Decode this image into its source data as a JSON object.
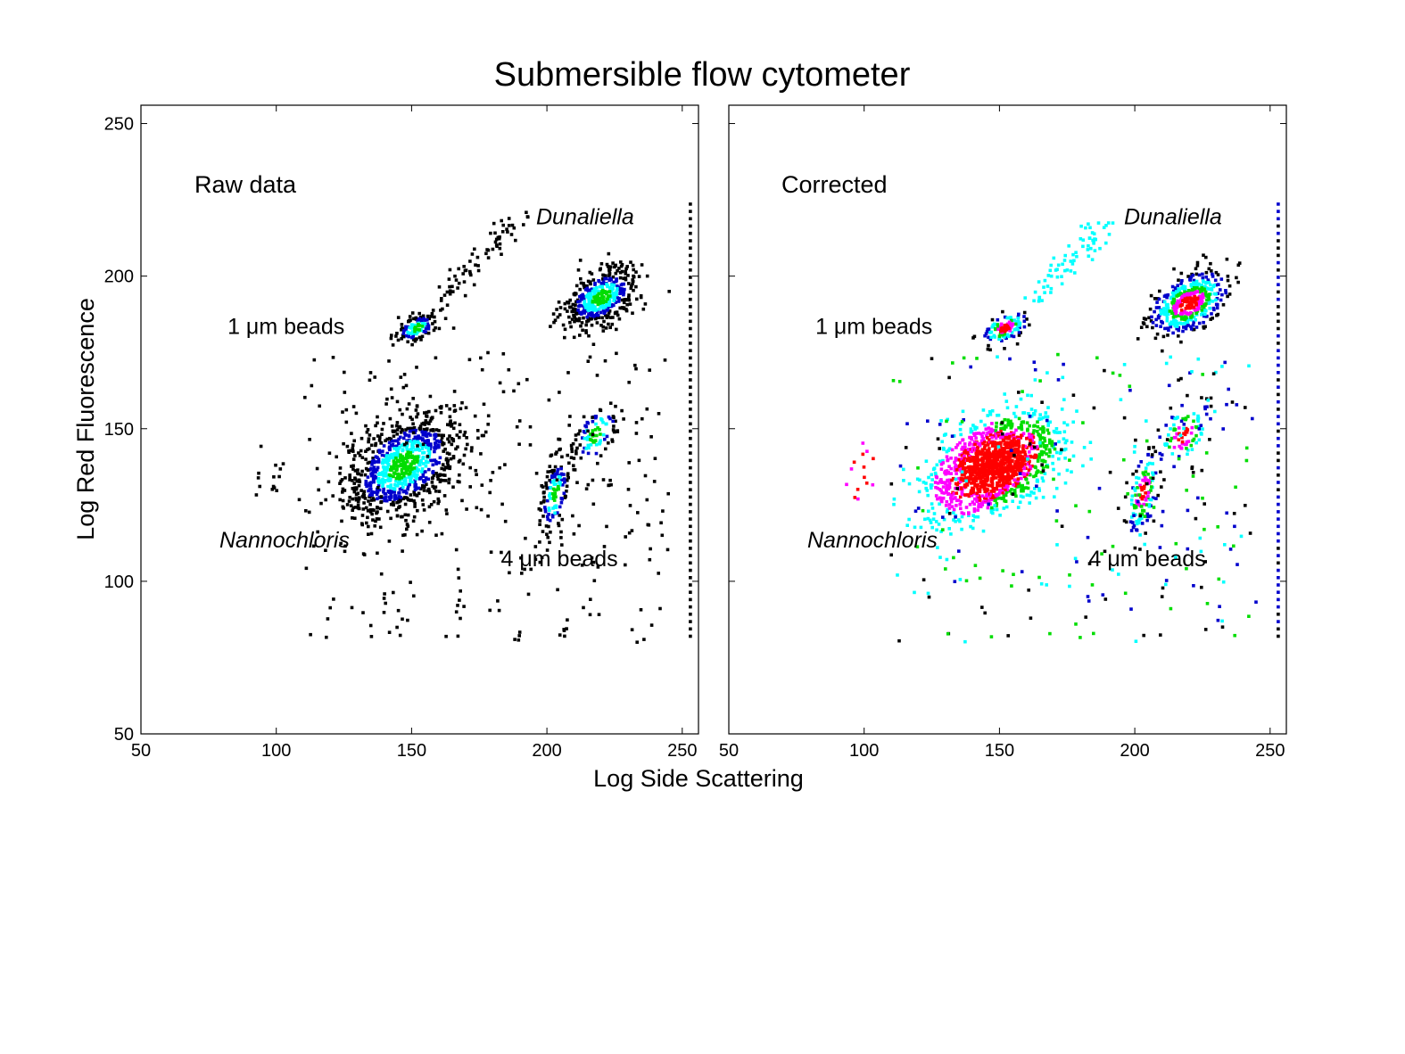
{
  "title": "Submersible flow cytometer",
  "xlabel": "Log Side Scattering",
  "ylabel": "Log Red Fluorescence",
  "colors": {
    "background": "#ffffff",
    "axes": "#000000",
    "scale": [
      "#000000",
      "#0000cc",
      "#00aaff",
      "#00ffff",
      "#00dd00",
      "#ff00ff",
      "#ff0000"
    ]
  },
  "chart_data": [
    {
      "type": "scatter",
      "panel_label": "Raw data",
      "xlim": [
        50,
        256
      ],
      "ylim": [
        50,
        256
      ],
      "xticks": [
        "50",
        "100",
        "150",
        "200",
        "250"
      ],
      "yticks": [
        "50",
        "100",
        "150",
        "200",
        "250"
      ],
      "grid": false,
      "annotations": [
        {
          "text": "Dunaliella",
          "italic": true,
          "x": 196,
          "y": 217
        },
        {
          "text": "1 μm beads",
          "italic": false,
          "x": 82,
          "y": 181
        },
        {
          "text": "Nannochloris",
          "italic": true,
          "x": 79,
          "y": 111
        },
        {
          "text": "4 μm beads",
          "italic": false,
          "x": 183,
          "y": 105
        }
      ],
      "clusters": [
        {
          "name": "Nannochloris",
          "x": 147,
          "y": 138,
          "sx": 11,
          "sy": 9,
          "n": 900
        },
        {
          "name": "1 um beads",
          "x": 152,
          "y": 183,
          "sx": 4,
          "sy": 2.5,
          "n": 120
        },
        {
          "name": "Dunaliella",
          "x": 220,
          "y": 193,
          "sx": 7,
          "sy": 5,
          "n": 450
        },
        {
          "name": "4 um beads",
          "x": 203,
          "y": 128,
          "sx": 3,
          "sy": 7,
          "n": 130
        },
        {
          "name": "diagonal band",
          "x": 218,
          "y": 148,
          "sx": 5,
          "sy": 6,
          "n": 100
        }
      ],
      "saturation_line_x": 253
    },
    {
      "type": "scatter",
      "panel_label": "Corrected",
      "xlim": [
        50,
        256
      ],
      "ylim": [
        50,
        256
      ],
      "xticks": [
        "50",
        "100",
        "150",
        "200",
        "250"
      ],
      "yticks": [
        "50",
        "100",
        "150",
        "200",
        "250"
      ],
      "grid": false,
      "annotations": [
        {
          "text": "Dunaliella",
          "italic": true,
          "x": 196,
          "y": 217
        },
        {
          "text": "1 μm beads",
          "italic": false,
          "x": 82,
          "y": 181
        },
        {
          "text": "Nannochloris",
          "italic": true,
          "x": 79,
          "y": 111
        },
        {
          "text": "4 μm beads",
          "italic": false,
          "x": 183,
          "y": 105
        }
      ],
      "clusters": [
        {
          "name": "Nannochloris",
          "x": 148,
          "y": 138,
          "sx": 11,
          "sy": 8,
          "n": 1400
        },
        {
          "name": "1 um beads",
          "x": 152,
          "y": 183,
          "sx": 4,
          "sy": 2.5,
          "n": 120
        },
        {
          "name": "Dunaliella",
          "x": 220,
          "y": 191,
          "sx": 7,
          "sy": 5,
          "n": 450
        },
        {
          "name": "4 um beads",
          "x": 203,
          "y": 129,
          "sx": 3,
          "sy": 7,
          "n": 130
        },
        {
          "name": "diagonal band",
          "x": 218,
          "y": 148,
          "sx": 5,
          "sy": 6,
          "n": 100
        }
      ],
      "saturation_line_x": 253
    }
  ]
}
